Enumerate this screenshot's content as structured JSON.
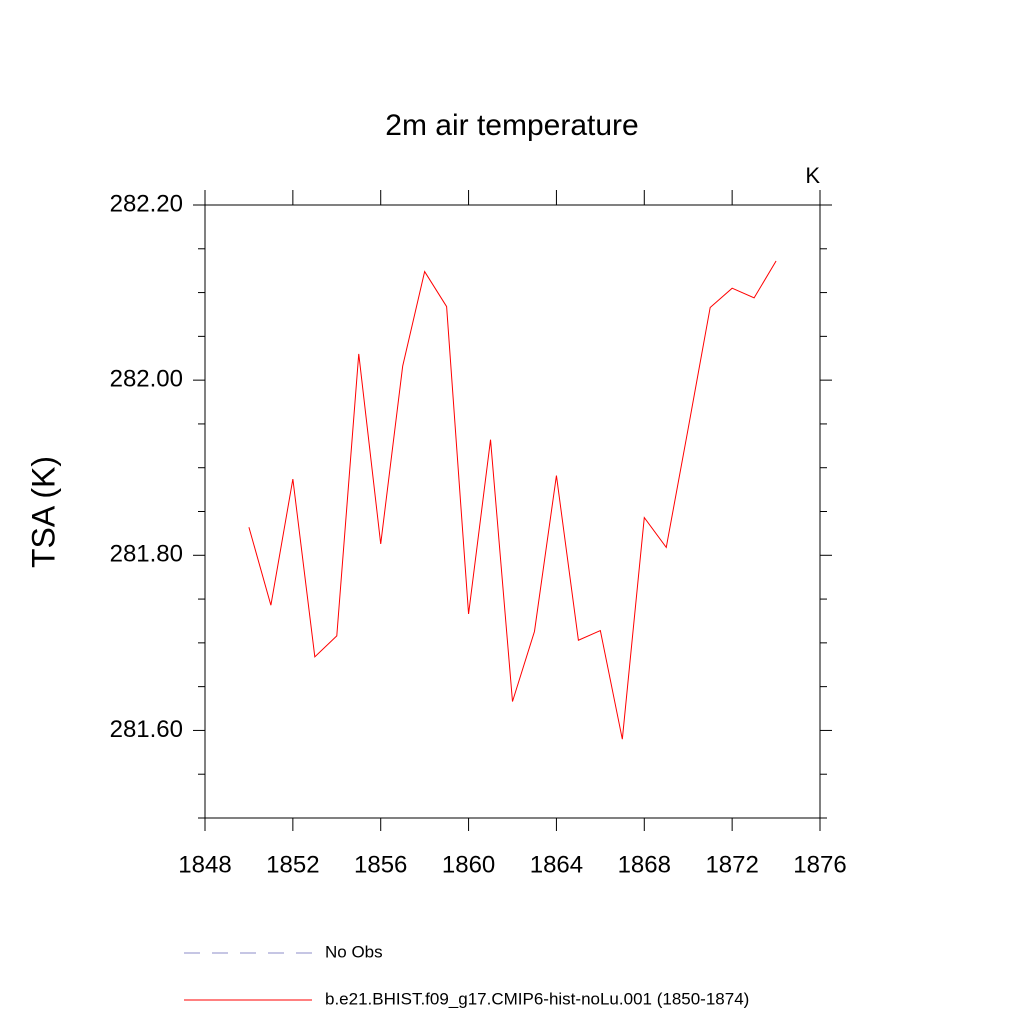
{
  "chart_data": {
    "type": "line",
    "title": "2m air temperature",
    "units": "K",
    "y_label": "TSA  (K)",
    "x": [
      1850,
      1851,
      1852,
      1853,
      1854,
      1855,
      1856,
      1857,
      1858,
      1859,
      1860,
      1861,
      1862,
      1863,
      1864,
      1865,
      1866,
      1867,
      1868,
      1869,
      1870,
      1871,
      1872,
      1873,
      1874
    ],
    "series": [
      {
        "name": "b.e21.BHIST.f09_g17.CMIP6-hist-noLu.001 (1850-1874)",
        "color": "#ff0000",
        "values": [
          281.832,
          281.743,
          281.887,
          281.684,
          281.708,
          282.03,
          281.813,
          282.016,
          282.124,
          282.084,
          281.733,
          281.932,
          281.633,
          281.713,
          281.891,
          281.703,
          281.714,
          281.59,
          281.843,
          281.809,
          281.945,
          282.083,
          282.105,
          282.094,
          282.136
        ]
      }
    ],
    "legend_entries": [
      {
        "name": "No Obs",
        "color": "#8c8cc8",
        "dash": "dashed"
      }
    ],
    "xlim": [
      1848,
      1876
    ],
    "xticks": [
      1848,
      1852,
      1856,
      1860,
      1864,
      1868,
      1872,
      1876
    ],
    "ylim": [
      281.5,
      282.2
    ],
    "yticks": [
      {
        "value": 281.6,
        "label": "281.60"
      },
      {
        "value": 281.8,
        "label": "281.80"
      },
      {
        "value": 282.0,
        "label": "282.00"
      },
      {
        "value": 282.2,
        "label": "282.20"
      }
    ],
    "yminorticks": [
      281.5,
      281.55,
      281.65,
      281.7,
      281.75,
      281.85,
      281.9,
      281.95,
      282.05,
      282.1,
      282.15
    ],
    "grid": false
  }
}
